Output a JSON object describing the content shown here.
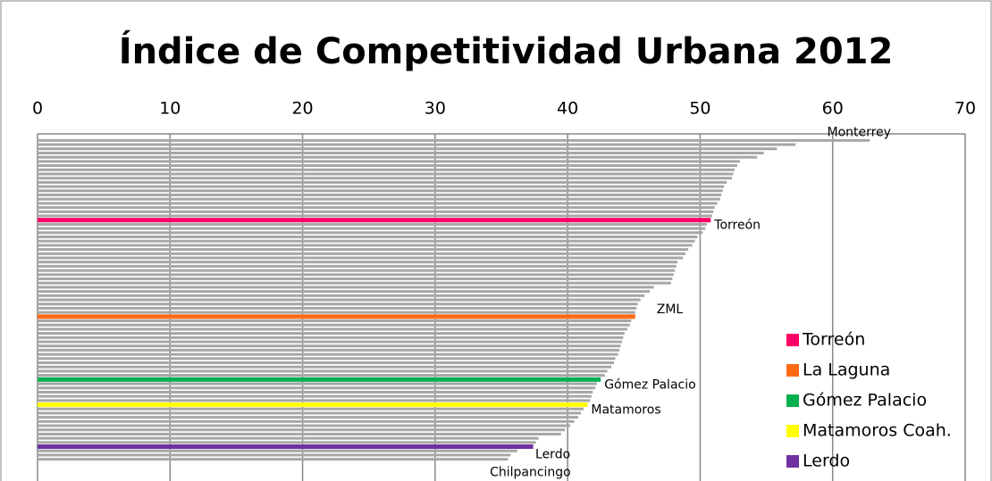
{
  "chart_data": {
    "type": "bar",
    "orientation": "horizontal",
    "title": "Índice de Competitividad Urbana 2012",
    "categories": [
      "Monterrey",
      null,
      null,
      null,
      null,
      null,
      null,
      null,
      null,
      null,
      null,
      null,
      null,
      null,
      null,
      null,
      null,
      null,
      null,
      "Torreón",
      null,
      null,
      null,
      null,
      null,
      null,
      null,
      null,
      null,
      null,
      null,
      null,
      null,
      null,
      null,
      null,
      null,
      null,
      null,
      null,
      null,
      null,
      "ZML",
      null,
      null,
      null,
      null,
      null,
      null,
      null,
      null,
      null,
      null,
      null,
      null,
      null,
      null,
      "Gómez Palacio",
      null,
      null,
      null,
      null,
      null,
      "Matamoros",
      null,
      null,
      null,
      null,
      null,
      null,
      null,
      null,
      null,
      "Lerdo",
      null,
      null,
      "Chilpancingo"
    ],
    "values": [
      62.8,
      57.2,
      55.8,
      54.8,
      54.3,
      53.0,
      52.8,
      52.6,
      52.5,
      52.4,
      52.0,
      51.8,
      51.7,
      51.6,
      51.5,
      51.3,
      51.1,
      51.0,
      50.9,
      50.8,
      50.5,
      50.4,
      50.2,
      49.8,
      49.6,
      49.4,
      49.1,
      48.9,
      48.7,
      48.3,
      48.2,
      48.1,
      48.0,
      47.9,
      47.8,
      46.5,
      46.2,
      45.8,
      45.5,
      45.3,
      45.2,
      45.1,
      45.1,
      44.8,
      44.7,
      44.5,
      44.3,
      44.2,
      44.1,
      44.0,
      43.9,
      43.8,
      43.6,
      43.5,
      43.3,
      43.0,
      42.8,
      42.5,
      42.2,
      42.1,
      41.9,
      41.8,
      41.7,
      41.5,
      41.2,
      41.0,
      40.8,
      40.5,
      40.2,
      39.8,
      39.5,
      37.8,
      37.6,
      37.4,
      36.2,
      35.7,
      35.5
    ],
    "color": "#a6a6a6",
    "highlight_colors": {
      "19": "#ff0066",
      "42": "#ff6a13",
      "57": "#00b050",
      "63": "#ffff00",
      "73": "#7030a0"
    },
    "legend": [
      {
        "name": "Torreón",
        "color": "#ff0066"
      },
      {
        "name": "La Laguna",
        "color": "#ff6a13"
      },
      {
        "name": "Gómez Palacio",
        "color": "#00b050"
      },
      {
        "name": "Matamoros Coah.",
        "color": "#ffff00"
      },
      {
        "name": "Lerdo",
        "color": "#7030a0"
      }
    ],
    "xlim": [
      0,
      70
    ],
    "xticks": [
      0,
      10,
      20,
      30,
      40,
      50,
      60,
      70
    ],
    "grid": true
  }
}
